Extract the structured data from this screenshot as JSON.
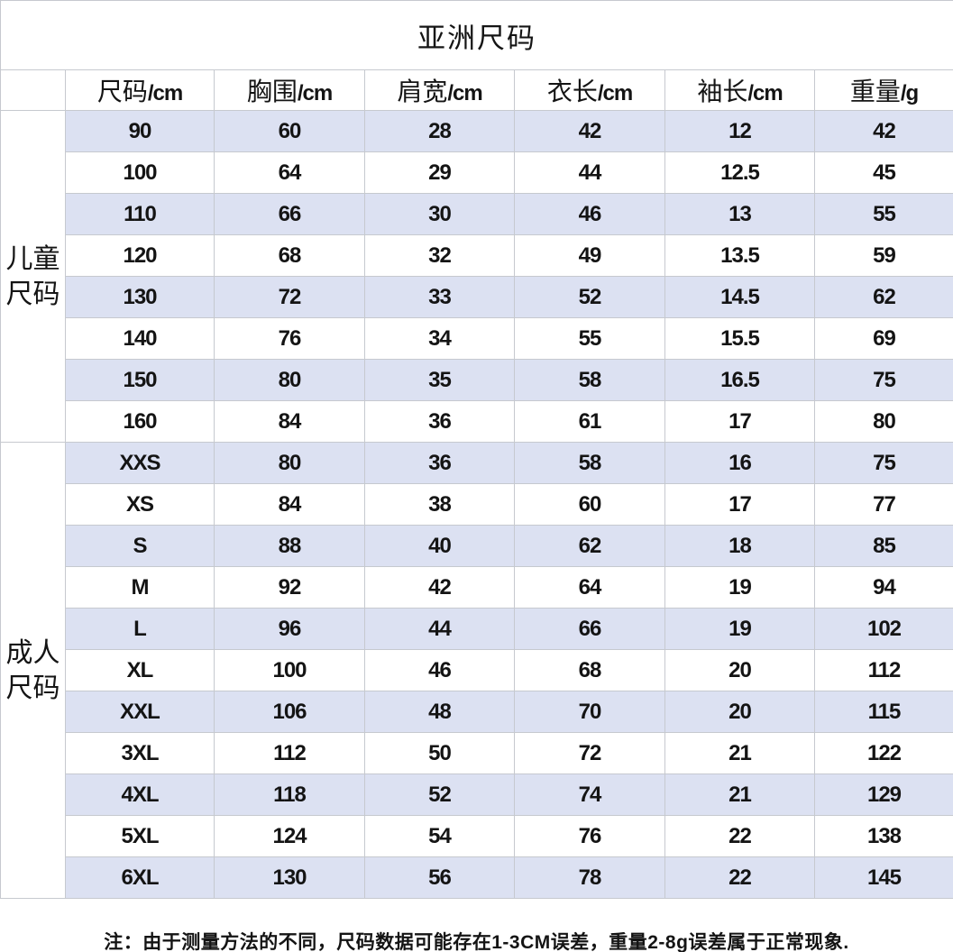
{
  "chart_data": {
    "type": "table",
    "title": "亚洲尺码",
    "columns": [
      {
        "zh": "尺码",
        "unit": "/cm"
      },
      {
        "zh": "胸围",
        "unit": "/cm"
      },
      {
        "zh": "肩宽",
        "unit": "/cm"
      },
      {
        "zh": "衣长",
        "unit": "/cm"
      },
      {
        "zh": "袖长",
        "unit": "/cm"
      },
      {
        "zh": "重量",
        "unit": "/g"
      }
    ],
    "row_groups": [
      {
        "group_name": "儿童尺码",
        "group_label_lines": [
          "儿童",
          "尺码"
        ],
        "rows": [
          [
            "90",
            "60",
            "28",
            "42",
            "12",
            "42"
          ],
          [
            "100",
            "64",
            "29",
            "44",
            "12.5",
            "45"
          ],
          [
            "110",
            "66",
            "30",
            "46",
            "13",
            "55"
          ],
          [
            "120",
            "68",
            "32",
            "49",
            "13.5",
            "59"
          ],
          [
            "130",
            "72",
            "33",
            "52",
            "14.5",
            "62"
          ],
          [
            "140",
            "76",
            "34",
            "55",
            "15.5",
            "69"
          ],
          [
            "150",
            "80",
            "35",
            "58",
            "16.5",
            "75"
          ],
          [
            "160",
            "84",
            "36",
            "61",
            "17",
            "80"
          ]
        ]
      },
      {
        "group_name": "成人尺码",
        "group_label_lines": [
          "成人",
          "尺码"
        ],
        "rows": [
          [
            "XXS",
            "80",
            "36",
            "58",
            "16",
            "75"
          ],
          [
            "XS",
            "84",
            "38",
            "60",
            "17",
            "77"
          ],
          [
            "S",
            "88",
            "40",
            "62",
            "18",
            "85"
          ],
          [
            "M",
            "92",
            "42",
            "64",
            "19",
            "94"
          ],
          [
            "L",
            "96",
            "44",
            "66",
            "19",
            "102"
          ],
          [
            "XL",
            "100",
            "46",
            "68",
            "20",
            "112"
          ],
          [
            "XXL",
            "106",
            "48",
            "70",
            "20",
            "115"
          ],
          [
            "3XL",
            "112",
            "50",
            "72",
            "21",
            "122"
          ],
          [
            "4XL",
            "118",
            "52",
            "74",
            "21",
            "129"
          ],
          [
            "5XL",
            "124",
            "54",
            "76",
            "22",
            "138"
          ],
          [
            "6XL",
            "130",
            "56",
            "78",
            "22",
            "145"
          ]
        ]
      }
    ],
    "note": "注：由于测量方法的不同，尺码数据可能存在1-3CM误差，重量2-8g误差属于正常现象.",
    "layout": {
      "stripe_color": "#dce1f2",
      "border_color": "#c6c9cf",
      "text_color": "#141414",
      "striping": "odd rows shaded, alternation continues across groups"
    }
  }
}
